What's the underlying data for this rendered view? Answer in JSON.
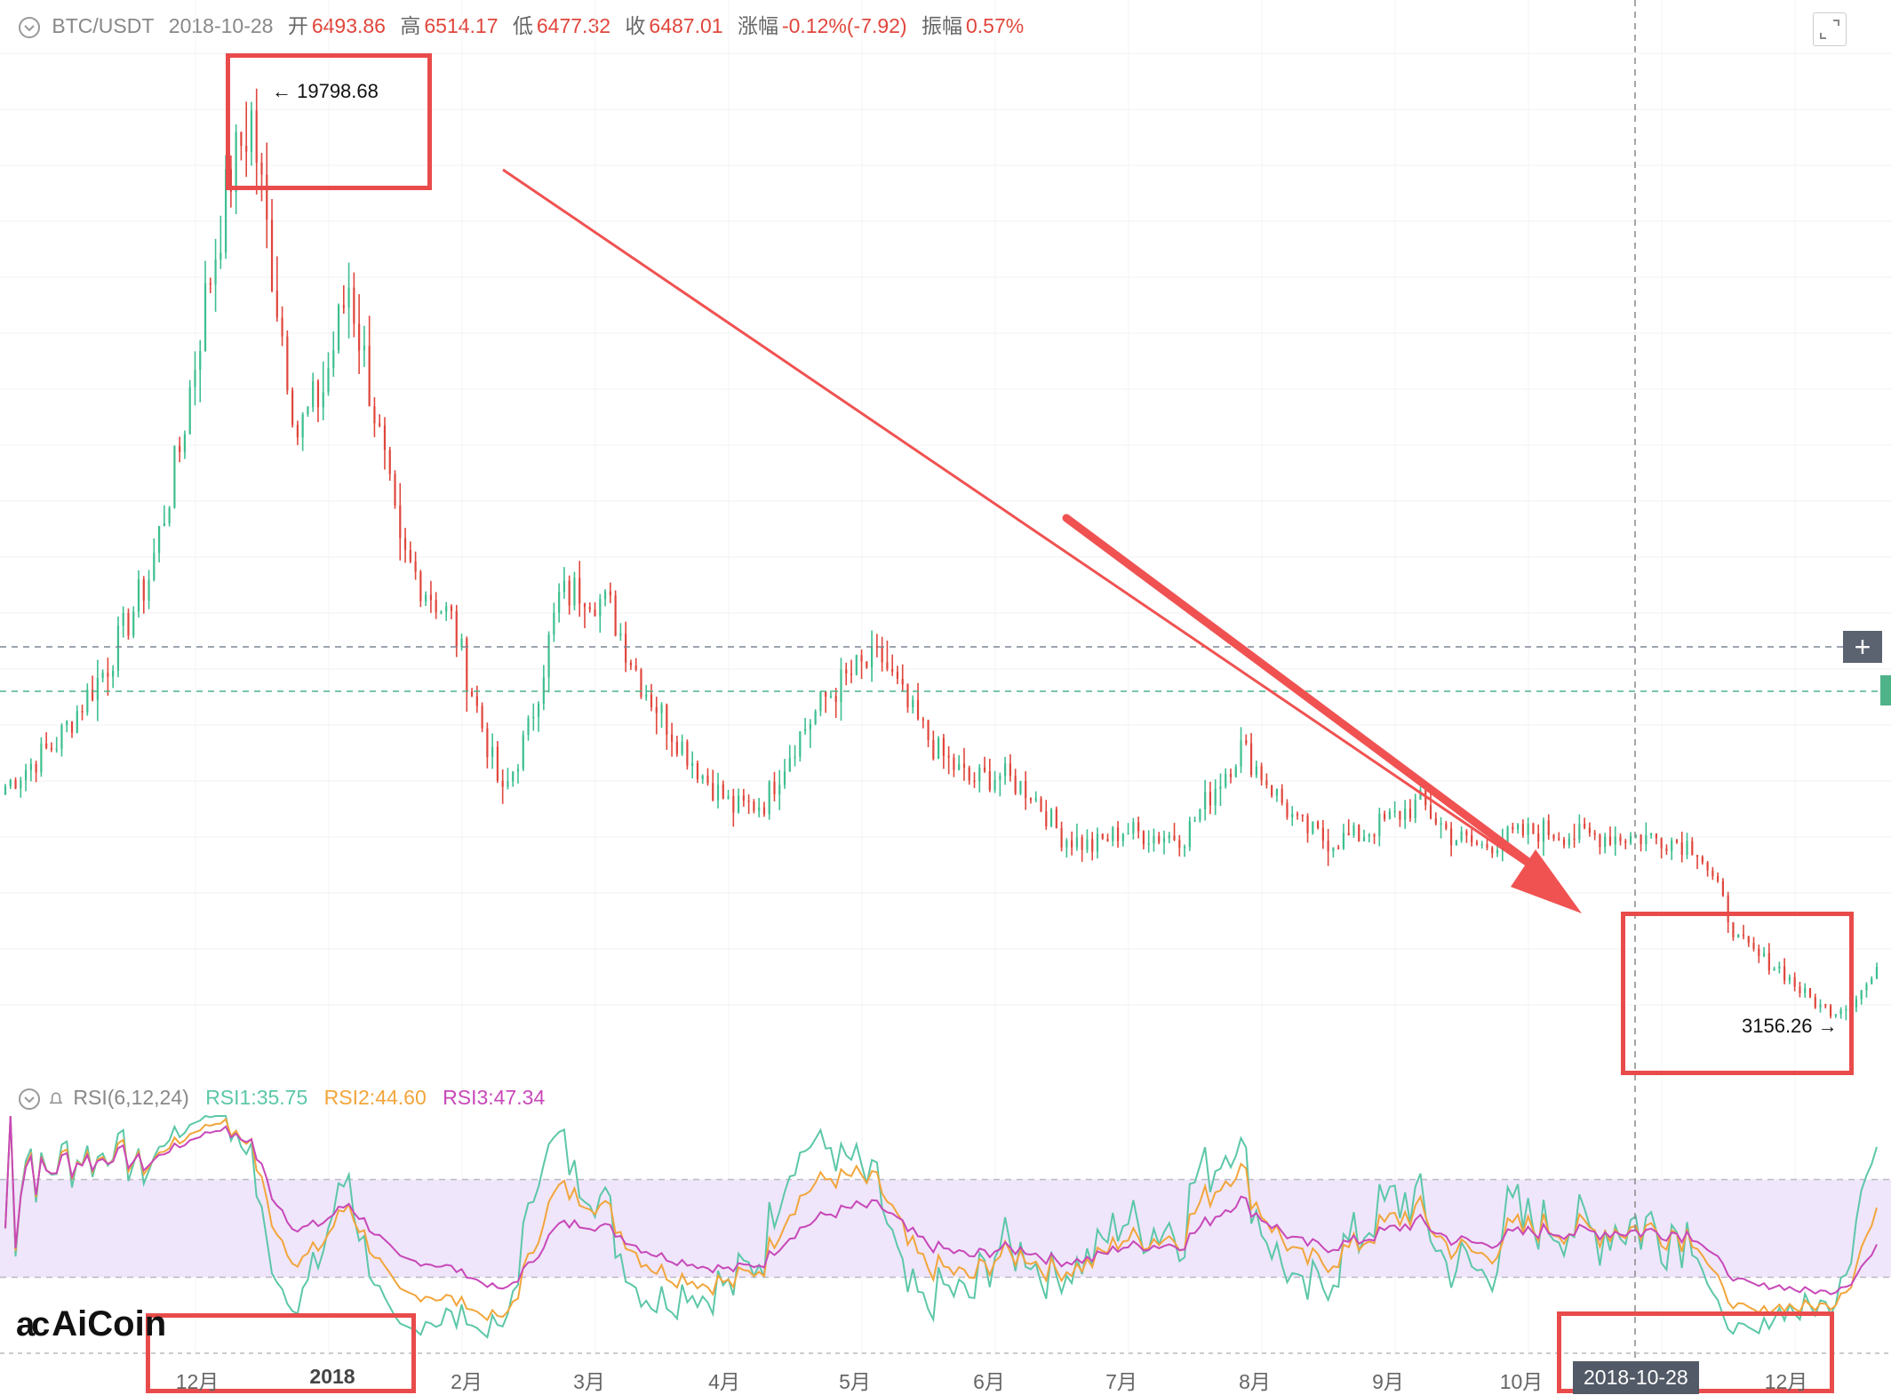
{
  "header": {
    "pair": "BTC/USDT",
    "date": "2018-10-28",
    "open_label": "开",
    "open": "6493.86",
    "high_label": "高",
    "high": "6514.17",
    "low_label": "低",
    "low": "6477.32",
    "close_label": "收",
    "close": "6487.01",
    "change_label": "涨幅",
    "change": "-0.12%(-7.92)",
    "amp_label": "振幅",
    "amp": "0.57%"
  },
  "rsi": {
    "title": "RSI(6,12,24)",
    "rsi1_label": "RSI1:35.75",
    "rsi2_label": "RSI2:44.60",
    "rsi3_label": "RSI3:47.34",
    "colors": {
      "rsi1": "#5cc7a8",
      "rsi2": "#f2a53b",
      "rsi3": "#c848b9"
    }
  },
  "annotations": {
    "high_label": "← 19798.68",
    "low_label": "3156.26 →"
  },
  "crosshair": {
    "date_label": "2018-10-28"
  },
  "logo": {
    "text": "AiCoin"
  },
  "side": {
    "plus": "+"
  },
  "colors": {
    "up": "#3dbf8f",
    "down": "#e0463c",
    "arrow": "#f05252",
    "box": "#e94b4b"
  },
  "chart_data": {
    "type": "candlestick",
    "x_ticks": [
      "12月",
      "2018",
      "2月",
      "3月",
      "4月",
      "5月",
      "6月",
      "7月",
      "8月",
      "9月",
      "10月",
      "12月"
    ],
    "x_tick_bold": [
      false,
      true,
      false,
      false,
      false,
      false,
      false,
      false,
      false,
      false,
      false,
      false
    ],
    "price_anchors": [
      {
        "t": 0,
        "p": 7400
      },
      {
        "t": 10,
        "p": 8200
      },
      {
        "t": 20,
        "p": 9600
      },
      {
        "t": 28,
        "p": 11200
      },
      {
        "t": 34,
        "p": 13500
      },
      {
        "t": 39,
        "p": 16200
      },
      {
        "t": 44,
        "p": 18500
      },
      {
        "t": 48,
        "p": 19500
      },
      {
        "t": 52,
        "p": 16800
      },
      {
        "t": 57,
        "p": 13800
      },
      {
        "t": 62,
        "p": 14600
      },
      {
        "t": 67,
        "p": 16500
      },
      {
        "t": 72,
        "p": 14200
      },
      {
        "t": 77,
        "p": 11600
      },
      {
        "t": 82,
        "p": 11000
      },
      {
        "t": 87,
        "p": 10400
      },
      {
        "t": 92,
        "p": 8800
      },
      {
        "t": 97,
        "p": 7200
      },
      {
        "t": 102,
        "p": 8400
      },
      {
        "t": 108,
        "p": 10800
      },
      {
        "t": 113,
        "p": 11000
      },
      {
        "t": 118,
        "p": 10600
      },
      {
        "t": 124,
        "p": 9300
      },
      {
        "t": 130,
        "p": 8400
      },
      {
        "t": 136,
        "p": 7600
      },
      {
        "t": 142,
        "p": 7000
      },
      {
        "t": 148,
        "p": 7100
      },
      {
        "t": 154,
        "p": 8200
      },
      {
        "t": 160,
        "p": 9000
      },
      {
        "t": 166,
        "p": 9500
      },
      {
        "t": 171,
        "p": 9700
      },
      {
        "t": 176,
        "p": 8800
      },
      {
        "t": 182,
        "p": 8000
      },
      {
        "t": 188,
        "p": 7500
      },
      {
        "t": 194,
        "p": 7600
      },
      {
        "t": 200,
        "p": 7300
      },
      {
        "t": 206,
        "p": 6500
      },
      {
        "t": 212,
        "p": 6300
      },
      {
        "t": 218,
        "p": 6600
      },
      {
        "t": 224,
        "p": 6500
      },
      {
        "t": 230,
        "p": 6500
      },
      {
        "t": 236,
        "p": 7400
      },
      {
        "t": 241,
        "p": 8100
      },
      {
        "t": 246,
        "p": 7500
      },
      {
        "t": 252,
        "p": 6700
      },
      {
        "t": 258,
        "p": 6400
      },
      {
        "t": 264,
        "p": 6500
      },
      {
        "t": 270,
        "p": 6800
      },
      {
        "t": 276,
        "p": 7100
      },
      {
        "t": 282,
        "p": 6500
      },
      {
        "t": 288,
        "p": 6300
      },
      {
        "t": 294,
        "p": 6500
      },
      {
        "t": 300,
        "p": 6600
      },
      {
        "t": 306,
        "p": 6500
      },
      {
        "t": 312,
        "p": 6500
      },
      {
        "t": 318,
        "p": 6480
      },
      {
        "t": 324,
        "p": 6450
      },
      {
        "t": 330,
        "p": 6300
      },
      {
        "t": 334,
        "p": 5500
      },
      {
        "t": 338,
        "p": 4600
      },
      {
        "t": 342,
        "p": 4300
      },
      {
        "t": 346,
        "p": 4100
      },
      {
        "t": 350,
        "p": 3700
      },
      {
        "t": 354,
        "p": 3400
      },
      {
        "t": 358,
        "p": 3300
      },
      {
        "t": 362,
        "p": 3700
      },
      {
        "t": 365,
        "p": 4000
      }
    ],
    "high_value": 19798.68,
    "low_value": 3156.26,
    "rsi_range": [
      0,
      100
    ],
    "rsi_band": [
      30,
      70
    ]
  }
}
